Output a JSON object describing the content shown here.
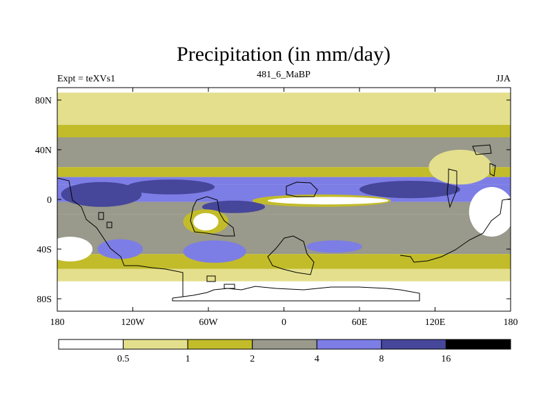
{
  "chart_data": {
    "type": "heatmap",
    "title": "Precipitation (in mm/day)",
    "left_label": "Expt = teXVs1",
    "center_label": "481_6_MaBP",
    "right_label": "JJA",
    "xlim": [
      -180,
      180
    ],
    "ylim": [
      -90,
      90
    ],
    "x_ticks": [
      {
        "value": -180,
        "label": "180"
      },
      {
        "value": -120,
        "label": "120W"
      },
      {
        "value": -60,
        "label": "60W"
      },
      {
        "value": 0,
        "label": "0"
      },
      {
        "value": 60,
        "label": "60E"
      },
      {
        "value": 120,
        "label": "120E"
      },
      {
        "value": 180,
        "label": "180"
      }
    ],
    "y_ticks": [
      {
        "value": 80,
        "label": "80N"
      },
      {
        "value": 40,
        "label": "40N"
      },
      {
        "value": 0,
        "label": "0"
      },
      {
        "value": -40,
        "label": "40S"
      },
      {
        "value": -80,
        "label": "80S"
      }
    ],
    "colorbar": {
      "colors": [
        "#ffffff",
        "#e3df8c",
        "#c2bc2a",
        "#99998c",
        "#7d7de6",
        "#46469a",
        "#000000"
      ],
      "levels": [
        "0.5",
        "1",
        "2",
        "4",
        "8",
        "16"
      ]
    },
    "zonal_bands": [
      {
        "from": 90,
        "to": 86,
        "class": 0
      },
      {
        "from": 86,
        "to": 60,
        "class": 1
      },
      {
        "from": 60,
        "to": 50,
        "class": 2
      },
      {
        "from": 50,
        "to": 26,
        "class": 3
      },
      {
        "from": 26,
        "to": 18,
        "class": 2
      },
      {
        "from": 18,
        "to": 12,
        "class": 4
      },
      {
        "from": 12,
        "to": -2,
        "class": 4
      },
      {
        "from": -2,
        "to": -12,
        "class": 3
      },
      {
        "from": -12,
        "to": -44,
        "class": 3
      },
      {
        "from": -44,
        "to": -56,
        "class": 2
      },
      {
        "from": -56,
        "to": -66,
        "class": 1
      },
      {
        "from": -66,
        "to": -90,
        "class": 0
      }
    ],
    "regions": [
      {
        "lon": -145,
        "lat": 4,
        "rx": 32,
        "ry": 10,
        "class": 5
      },
      {
        "lon": -90,
        "lat": 10,
        "rx": 35,
        "ry": 6,
        "class": 5
      },
      {
        "lon": -40,
        "lat": -6,
        "rx": 25,
        "ry": 5,
        "class": 5
      },
      {
        "lon": 100,
        "lat": 8,
        "rx": 40,
        "ry": 7,
        "class": 5
      },
      {
        "lon": 30,
        "lat": -1,
        "rx": 55,
        "ry": 5,
        "class": 2
      },
      {
        "lon": 35,
        "lat": -1,
        "rx": 48,
        "ry": 3,
        "class": 0
      },
      {
        "lon": -62,
        "lat": -18,
        "rx": 18,
        "ry": 10,
        "class": 2
      },
      {
        "lon": -62,
        "lat": -18,
        "rx": 10,
        "ry": 7,
        "class": 0
      },
      {
        "lon": -130,
        "lat": -40,
        "rx": 18,
        "ry": 8,
        "class": 4
      },
      {
        "lon": -55,
        "lat": -42,
        "rx": 25,
        "ry": 9,
        "class": 4
      },
      {
        "lon": 40,
        "lat": -38,
        "rx": 22,
        "ry": 5,
        "class": 4
      },
      {
        "lon": 150,
        "lat": 26,
        "rx": 15,
        "ry": 10,
        "class": 0
      },
      {
        "lon": 140,
        "lat": 26,
        "rx": 25,
        "ry": 14,
        "class": 1
      },
      {
        "lon": 165,
        "lat": -10,
        "rx": 18,
        "ry": 20,
        "class": 0
      },
      {
        "lon": -170,
        "lat": -40,
        "rx": 18,
        "ry": 10,
        "class": 0
      }
    ]
  }
}
